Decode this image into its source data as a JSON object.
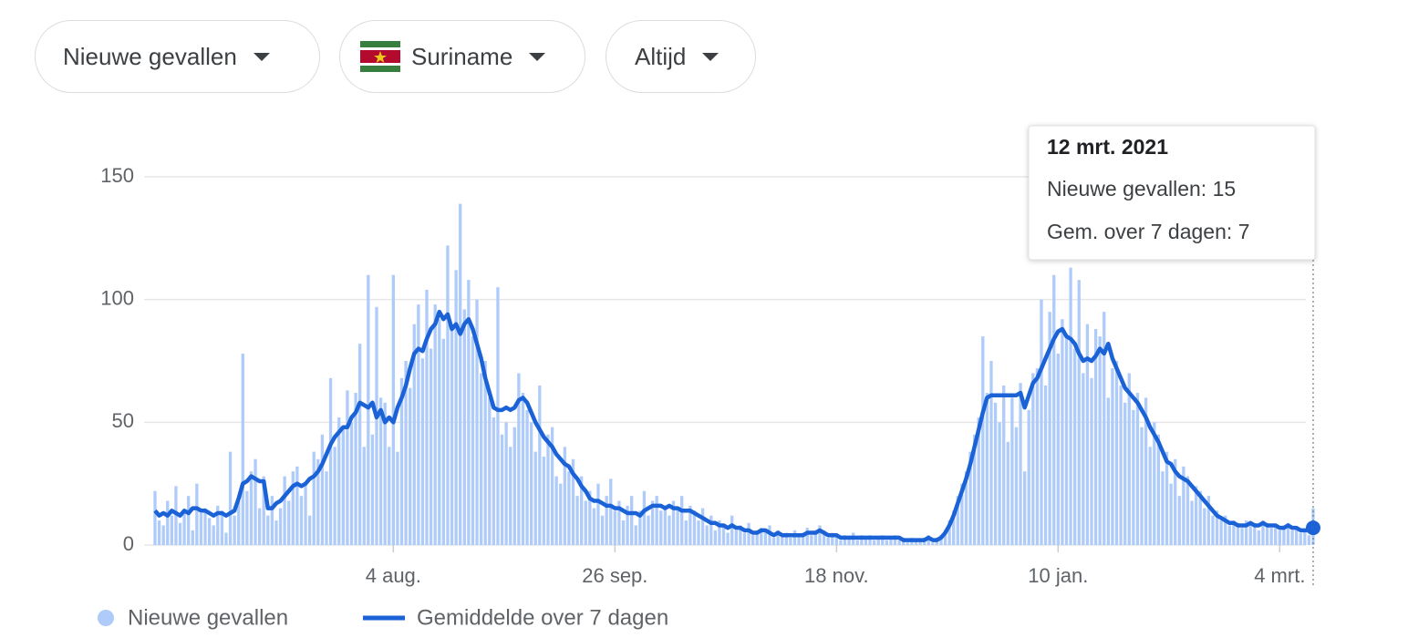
{
  "filters": [
    "Nieuwe gevallen",
    "Suriname",
    "Altijd"
  ],
  "chart_data": {
    "type": "bar",
    "categories": [
      null,
      null,
      null,
      null,
      null,
      null,
      null,
      null,
      null,
      null,
      null,
      null,
      null,
      null,
      null,
      null,
      null,
      null,
      null,
      null,
      null,
      null,
      null,
      null,
      null,
      null,
      null,
      null,
      null,
      null,
      null,
      null,
      null,
      null,
      null,
      null,
      null,
      null,
      null,
      null,
      null,
      null,
      null,
      null,
      null,
      null,
      null,
      null,
      null,
      null,
      null,
      null,
      null,
      null,
      null,
      null,
      null,
      "4 aug.",
      null,
      null,
      null,
      null,
      null,
      null,
      null,
      null,
      null,
      null,
      null,
      null,
      null,
      null,
      null,
      null,
      null,
      null,
      null,
      null,
      null,
      null,
      null,
      null,
      null,
      null,
      null,
      null,
      null,
      null,
      null,
      null,
      null,
      null,
      null,
      null,
      null,
      null,
      null,
      null,
      null,
      null,
      null,
      null,
      null,
      null,
      null,
      null,
      null,
      null,
      null,
      null,
      "26 sep.",
      null,
      null,
      null,
      null,
      null,
      null,
      null,
      null,
      null,
      null,
      null,
      null,
      null,
      null,
      null,
      null,
      null,
      null,
      null,
      null,
      null,
      null,
      null,
      null,
      null,
      null,
      null,
      null,
      null,
      null,
      null,
      null,
      null,
      null,
      null,
      null,
      null,
      null,
      null,
      null,
      null,
      null,
      null,
      null,
      null,
      null,
      null,
      null,
      null,
      null,
      null,
      null,
      "18 nov.",
      null,
      null,
      null,
      null,
      null,
      null,
      null,
      null,
      null,
      null,
      null,
      null,
      null,
      null,
      null,
      null,
      null,
      null,
      null,
      null,
      null,
      null,
      null,
      null,
      null,
      null,
      null,
      null,
      null,
      null,
      null,
      null,
      null,
      null,
      null,
      null,
      null,
      null,
      null,
      null,
      null,
      null,
      null,
      null,
      null,
      null,
      null,
      null,
      null,
      null,
      null,
      null,
      "10 jan.",
      null,
      null,
      null,
      null,
      null,
      null,
      null,
      null,
      null,
      null,
      null,
      null,
      null,
      null,
      null,
      null,
      null,
      null,
      null,
      null,
      null,
      null,
      null,
      null,
      null,
      null,
      null,
      null,
      null,
      null,
      null,
      null,
      null,
      null,
      null,
      null,
      null,
      null,
      null,
      null,
      null,
      null,
      null,
      null,
      null,
      null,
      null,
      null,
      null,
      null,
      null,
      null,
      "4 mrt.",
      null,
      null,
      null,
      null,
      null,
      null,
      null,
      null
    ],
    "series": [
      {
        "name": "Nieuwe gevallen",
        "type": "bar",
        "color": "#aecbfa",
        "values": [
          22,
          10,
          8,
          18,
          12,
          24,
          9,
          14,
          20,
          6,
          25,
          13,
          15,
          11,
          8,
          16,
          14,
          5,
          38,
          12,
          18,
          78,
          22,
          30,
          35,
          15,
          28,
          12,
          20,
          10,
          15,
          28,
          18,
          30,
          32,
          20,
          25,
          12,
          38,
          35,
          45,
          30,
          68,
          40,
          52,
          48,
          63,
          50,
          62,
          82,
          40,
          110,
          45,
          97,
          60,
          58,
          40,
          110,
          38,
          68,
          75,
          64,
          90,
          98,
          76,
          104,
          80,
          98,
          92,
          84,
          122,
          88,
          112,
          139,
          96,
          108,
          85,
          100,
          70,
          75,
          60,
          52,
          105,
          45,
          50,
          40,
          48,
          70,
          62,
          55,
          50,
          38,
          65,
          36,
          45,
          48,
          28,
          25,
          40,
          30,
          35,
          20,
          28,
          18,
          22,
          15,
          25,
          12,
          20,
          27,
          14,
          18,
          10,
          16,
          20,
          8,
          14,
          22,
          12,
          18,
          20,
          14,
          16,
          12,
          18,
          15,
          20,
          10,
          16,
          14,
          10,
          15,
          8,
          12,
          6,
          10,
          8,
          5,
          12,
          6,
          8,
          5,
          9,
          4,
          6,
          7,
          5,
          8,
          3,
          6,
          4,
          5,
          3,
          6,
          4,
          5,
          7,
          4,
          6,
          8,
          6,
          3,
          5,
          4,
          2,
          4,
          3,
          5,
          2,
          4,
          3,
          4,
          2,
          3,
          4,
          2,
          3,
          4,
          2,
          3,
          1,
          3,
          2,
          2,
          3,
          4,
          1,
          3,
          4,
          6,
          10,
          14,
          20,
          25,
          30,
          38,
          45,
          52,
          85,
          62,
          75,
          58,
          50,
          65,
          42,
          60,
          48,
          66,
          30,
          55,
          70,
          72,
          100,
          65,
          95,
          110,
          78,
          92,
          85,
          113,
          80,
          108,
          70,
          90,
          68,
          88,
          85,
          95,
          60,
          72,
          75,
          65,
          58,
          70,
          55,
          62,
          48,
          60,
          40,
          50,
          45,
          30,
          38,
          25,
          35,
          20,
          32,
          28,
          18,
          24,
          22,
          15,
          20,
          12,
          14,
          10,
          12,
          8,
          10,
          9,
          7,
          10,
          8,
          9,
          6,
          10,
          9,
          7,
          8,
          6,
          8,
          9,
          6,
          7,
          5,
          6,
          4,
          15
        ]
      },
      {
        "name": "Gemiddelde over 7 dagen",
        "type": "line",
        "color": "#1a62d6",
        "values": [
          14,
          12,
          13,
          12,
          14,
          13,
          12,
          14,
          13,
          15,
          15,
          14,
          14,
          13,
          12,
          13,
          13,
          12,
          13,
          14,
          19,
          25,
          26,
          28,
          27,
          26,
          26,
          15,
          15,
          17,
          18,
          20,
          22,
          24,
          25,
          24,
          25,
          27,
          28,
          30,
          33,
          37,
          41,
          44,
          46,
          48,
          48,
          52,
          54,
          58,
          57,
          56,
          58,
          52,
          55,
          50,
          52,
          50,
          56,
          60,
          65,
          72,
          78,
          80,
          79,
          84,
          88,
          90,
          95,
          92,
          94,
          88,
          90,
          86,
          90,
          92,
          88,
          82,
          76,
          68,
          62,
          56,
          55,
          55,
          56,
          55,
          56,
          59,
          60,
          58,
          54,
          50,
          47,
          44,
          42,
          40,
          37,
          35,
          33,
          32,
          29,
          27,
          24,
          22,
          19,
          18,
          18,
          17,
          16,
          16,
          15,
          15,
          14,
          13,
          13,
          13,
          12,
          14,
          15,
          16,
          16,
          16,
          15,
          16,
          15,
          15,
          14,
          14,
          14,
          13,
          12,
          11,
          10,
          9,
          9,
          8,
          8,
          7,
          8,
          7,
          7,
          6,
          6,
          5,
          5,
          6,
          6,
          5,
          4,
          5,
          4,
          4,
          4,
          4,
          4,
          4,
          5,
          5,
          5,
          6,
          5,
          4,
          4,
          4,
          3,
          3,
          3,
          3,
          3,
          3,
          3,
          3,
          3,
          3,
          3,
          3,
          3,
          3,
          3,
          2,
          2,
          2,
          2,
          2,
          2,
          3,
          2,
          2,
          3,
          5,
          8,
          12,
          17,
          22,
          27,
          33,
          40,
          47,
          54,
          60,
          61,
          61,
          61,
          61,
          61,
          61,
          61,
          62,
          56,
          61,
          66,
          68,
          72,
          76,
          80,
          84,
          87,
          88,
          85,
          84,
          82,
          78,
          75,
          76,
          75,
          77,
          80,
          78,
          82,
          76,
          72,
          68,
          64,
          62,
          60,
          58,
          55,
          52,
          48,
          45,
          42,
          38,
          34,
          33,
          30,
          28,
          27,
          26,
          24,
          22,
          20,
          18,
          16,
          14,
          12,
          11,
          10,
          9,
          9,
          8,
          8,
          8,
          9,
          8,
          8,
          9,
          8,
          8,
          8,
          7,
          7,
          8,
          7,
          7,
          6,
          6,
          6,
          7
        ]
      }
    ],
    "ylim": [
      0,
      150
    ],
    "yticks": [
      0,
      50,
      100,
      150
    ],
    "grid": true,
    "tooltip": {
      "title": "12 mrt. 2021",
      "items": [
        "Nieuwe gevallen:",
        "Gem. over 7 dagen:"
      ]
    }
  }
}
